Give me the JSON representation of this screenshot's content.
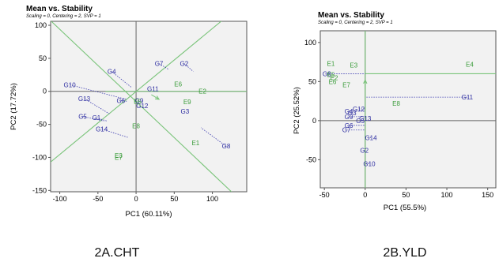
{
  "colors": {
    "genotype": "#2b2ba0",
    "environment": "#3a9c3a",
    "green_line": "#7ac47a",
    "dotted": "#3b3bb0",
    "panel_bg": "#f2f2f2"
  },
  "captions": [
    "2A.CHT",
    "2B.YLD"
  ],
  "chart_data": [
    {
      "type": "scatter",
      "title": "Mean vs. Stability",
      "subtitle": "Scaling = 0, Centering = 2, SVP = 1",
      "xlabel": "PC1 (60.11%)",
      "ylabel": "PC2 (17.72%)",
      "xlim": [
        -112,
        145
      ],
      "ylim": [
        -152,
        106
      ],
      "xticks": [
        -100,
        -50,
        0,
        50,
        100
      ],
      "yticks": [
        -150,
        -100,
        -50,
        0,
        50,
        100
      ],
      "axis_origin": [
        0,
        0
      ],
      "green_lines": [
        {
          "from": [
            -112,
            -107
          ],
          "to": [
            145,
            138
          ]
        },
        {
          "from": [
            -112,
            107
          ],
          "to": [
            125,
            -152
          ]
        },
        {
          "from": [
            -40,
            0
          ],
          "to": [
            145,
            0
          ]
        }
      ],
      "average_arrow": {
        "from": [
          20,
          -5
        ],
        "to": [
          30,
          -12
        ]
      },
      "genotypes": [
        {
          "name": "G10",
          "x": -87,
          "y": 10
        },
        {
          "name": "G4",
          "x": -32,
          "y": 30
        },
        {
          "name": "G7",
          "x": 30,
          "y": 42
        },
        {
          "name": "G2",
          "x": 63,
          "y": 42
        },
        {
          "name": "G13",
          "x": -68,
          "y": -11
        },
        {
          "name": "G6",
          "x": -20,
          "y": -14
        },
        {
          "name": "G5",
          "x": -70,
          "y": -38
        },
        {
          "name": "G1",
          "x": -52,
          "y": -40
        },
        {
          "name": "G14",
          "x": -45,
          "y": -57
        },
        {
          "name": "G11",
          "x": 22,
          "y": 4
        },
        {
          "name": "G9",
          "x": 4,
          "y": -14
        },
        {
          "name": "G12",
          "x": 8,
          "y": -22
        },
        {
          "name": "G3",
          "x": 64,
          "y": -30
        },
        {
          "name": "G8",
          "x": 118,
          "y": -83
        }
      ],
      "environments": [
        {
          "name": "E6",
          "x": 55,
          "y": 11
        },
        {
          "name": "E2",
          "x": 87,
          "y": 0
        },
        {
          "name": "E5",
          "x": 2,
          "y": -15
        },
        {
          "name": "E9",
          "x": 67,
          "y": -16
        },
        {
          "name": "E8",
          "x": 0,
          "y": -52
        },
        {
          "name": "E1",
          "x": 78,
          "y": -78
        },
        {
          "name": "E3",
          "x": -23,
          "y": -97
        },
        {
          "name": "E7",
          "x": -23,
          "y": -100
        }
      ],
      "projections": [
        {
          "from": [
            -87,
            10
          ],
          "to": [
            -13,
            -12
          ]
        },
        {
          "from": [
            -32,
            30
          ],
          "to": [
            -6,
            6
          ]
        },
        {
          "from": [
            30,
            42
          ],
          "to": [
            43,
            33
          ]
        },
        {
          "from": [
            63,
            42
          ],
          "to": [
            75,
            30
          ]
        },
        {
          "from": [
            -68,
            -11
          ],
          "to": [
            -35,
            -34
          ]
        },
        {
          "from": [
            -20,
            -14
          ],
          "to": [
            -12,
            -15
          ]
        },
        {
          "from": [
            -70,
            -38
          ],
          "to": [
            -42,
            -45
          ]
        },
        {
          "from": [
            -52,
            -40
          ],
          "to": [
            -38,
            -45
          ]
        },
        {
          "from": [
            -45,
            -57
          ],
          "to": [
            -10,
            -70
          ]
        },
        {
          "from": [
            118,
            -83
          ],
          "to": [
            85,
            -55
          ]
        }
      ]
    },
    {
      "type": "scatter",
      "title": "Mean vs. Stability",
      "subtitle": "Scaling = 0, Centering = 2, SVP = 1",
      "xlabel": "PC1 (55.5%)",
      "ylabel": "PC2 (25.52%)",
      "xlim": [
        -55,
        160
      ],
      "ylim": [
        -86,
        115
      ],
      "xticks": [
        -50,
        0,
        50,
        100,
        150
      ],
      "yticks": [
        -50,
        0,
        50,
        100
      ],
      "axis_origin": [
        0,
        0
      ],
      "green_lines": [
        {
          "from": [
            0,
            -86
          ],
          "to": [
            0,
            115
          ]
        },
        {
          "from": [
            0,
            60
          ],
          "to": [
            160,
            60
          ]
        }
      ],
      "average_arrow": {
        "from": [
          0,
          40
        ],
        "to": [
          0,
          52
        ]
      },
      "genotypes": [
        {
          "name": "G8",
          "x": -47,
          "y": 60
        },
        {
          "name": "G11",
          "x": 125,
          "y": 30
        },
        {
          "name": "G12",
          "x": -8,
          "y": 15
        },
        {
          "name": "G4",
          "x": -20,
          "y": 12
        },
        {
          "name": "G3",
          "x": -16,
          "y": 10
        },
        {
          "name": "G9",
          "x": -20,
          "y": 5
        },
        {
          "name": "G13",
          "x": 0,
          "y": 3
        },
        {
          "name": "G5",
          "x": -6,
          "y": 0
        },
        {
          "name": "G6",
          "x": -20,
          "y": -6
        },
        {
          "name": "G7",
          "x": -23,
          "y": -12
        },
        {
          "name": "G14",
          "x": 7,
          "y": -22
        },
        {
          "name": "G2",
          "x": -1,
          "y": -38
        },
        {
          "name": "G10",
          "x": 5,
          "y": -55
        }
      ],
      "environments": [
        {
          "name": "E1",
          "x": -42,
          "y": 73
        },
        {
          "name": "E3",
          "x": -14,
          "y": 71
        },
        {
          "name": "E4",
          "x": 128,
          "y": 72
        },
        {
          "name": "E5",
          "x": -42,
          "y": 59
        },
        {
          "name": "E2",
          "x": -38,
          "y": 55
        },
        {
          "name": "E6",
          "x": -40,
          "y": 50
        },
        {
          "name": "E7",
          "x": -23,
          "y": 46
        },
        {
          "name": "E8",
          "x": 38,
          "y": 22
        }
      ],
      "projections": [
        {
          "from": [
            -47,
            60
          ],
          "to": [
            0,
            60
          ]
        },
        {
          "from": [
            125,
            30
          ],
          "to": [
            0,
            30
          ]
        },
        {
          "from": [
            -8,
            15
          ],
          "to": [
            0,
            15
          ]
        },
        {
          "from": [
            -20,
            12
          ],
          "to": [
            0,
            12
          ]
        },
        {
          "from": [
            -20,
            5
          ],
          "to": [
            0,
            5
          ]
        },
        {
          "from": [
            -20,
            -6
          ],
          "to": [
            0,
            -6
          ]
        },
        {
          "from": [
            -23,
            -12
          ],
          "to": [
            0,
            -12
          ]
        },
        {
          "from": [
            7,
            -22
          ],
          "to": [
            0,
            -22
          ]
        },
        {
          "from": [
            -1,
            -38
          ],
          "to": [
            0,
            -38
          ]
        },
        {
          "from": [
            5,
            -55
          ],
          "to": [
            0,
            -55
          ]
        }
      ]
    }
  ]
}
